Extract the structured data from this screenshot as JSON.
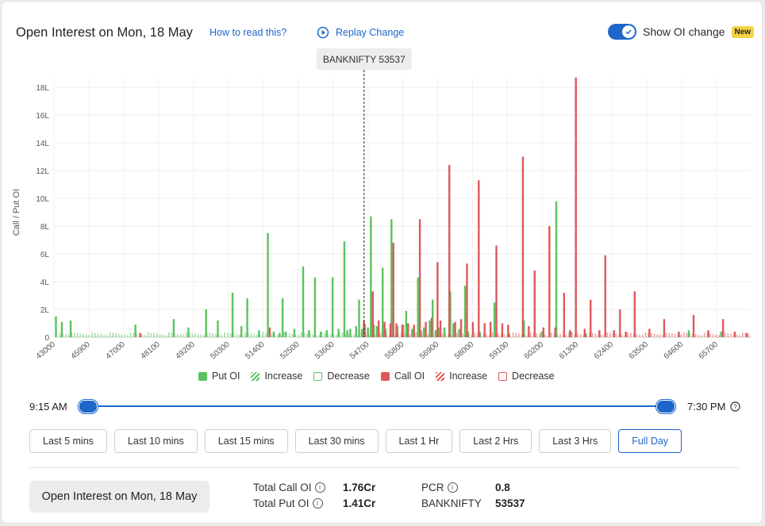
{
  "header": {
    "title": "Open Interest on Mon, 18 May",
    "how_to_read": "How to read this?",
    "replay": "Replay Change",
    "toggle_label": "Show OI change",
    "badge": "New"
  },
  "tooltip": "BANKNIFTY 53537",
  "legend": [
    {
      "label": "Put OI",
      "style": "solid",
      "color": "#5ac35f"
    },
    {
      "label": "Increase",
      "style": "hatch",
      "color": "#5ac35f"
    },
    {
      "label": "Decrease",
      "style": "outline",
      "color": "#5ac35f"
    },
    {
      "label": "Call OI",
      "style": "solid",
      "color": "#e0585a"
    },
    {
      "label": "Increase",
      "style": "hatch",
      "color": "#e0585a"
    },
    {
      "label": "Decrease",
      "style": "outline",
      "color": "#e0585a"
    }
  ],
  "slider": {
    "start": "9:15 AM",
    "end": "7:30 PM"
  },
  "time_buttons": [
    "Last 5 mins",
    "Last 10 mins",
    "Last 15 mins",
    "Last 30 mins",
    "Last 1 Hr",
    "Last 2 Hrs",
    "Last 3 Hrs",
    "Full Day"
  ],
  "active_button": "Full Day",
  "footer": {
    "box_label": "Open Interest on Mon, 18 May",
    "total_call_label": "Total Call OI",
    "total_call_value": "1.76Cr",
    "total_put_label": "Total Put OI",
    "total_put_value": "1.41Cr",
    "pcr_label": "PCR",
    "pcr_value": "0.8",
    "underlying_label": "BANKNIFTY",
    "underlying_value": "53537"
  },
  "colors": {
    "put": "#5ac35f",
    "call": "#e0585a",
    "accent": "#1e66c9"
  },
  "chart_data": {
    "type": "bar",
    "ylabel": "Call / Put OI",
    "ylim": [
      0,
      18
    ],
    "yticks": [
      "0",
      "2L",
      "4L",
      "6L",
      "8L",
      "10L",
      "12L",
      "14L",
      "16L",
      "18L"
    ],
    "xticks": [
      "43000",
      "45900",
      "47000",
      "48100",
      "49200",
      "50300",
      "51400",
      "52500",
      "53600",
      "54700",
      "55800",
      "56900",
      "58000",
      "59100",
      "60200",
      "61300",
      "62400",
      "63500",
      "64600",
      "65700"
    ],
    "xlim": [
      43000,
      66700
    ],
    "spot": 53537,
    "series": [
      {
        "name": "Put OI",
        "points": [
          [
            43100,
            1.5
          ],
          [
            43300,
            1.1
          ],
          [
            43600,
            1.2
          ],
          [
            45800,
            0.9
          ],
          [
            47100,
            1.3
          ],
          [
            47600,
            0.7
          ],
          [
            48200,
            2.0
          ],
          [
            48600,
            1.2
          ],
          [
            49100,
            3.2
          ],
          [
            49400,
            0.8
          ],
          [
            49600,
            2.8
          ],
          [
            50000,
            0.5
          ],
          [
            50300,
            7.5
          ],
          [
            50500,
            0.4
          ],
          [
            50700,
            0.3
          ],
          [
            50800,
            2.8
          ],
          [
            50900,
            0.4
          ],
          [
            51200,
            0.6
          ],
          [
            51500,
            5.1
          ],
          [
            51700,
            0.5
          ],
          [
            51900,
            4.3
          ],
          [
            52100,
            0.4
          ],
          [
            52300,
            0.5
          ],
          [
            52500,
            4.3
          ],
          [
            52700,
            0.6
          ],
          [
            52900,
            6.9
          ],
          [
            53000,
            0.5
          ],
          [
            53100,
            0.6
          ],
          [
            53300,
            0.8
          ],
          [
            53400,
            2.7
          ],
          [
            53500,
            0.6
          ],
          [
            53600,
            0.9
          ],
          [
            53700,
            0.7
          ],
          [
            53800,
            8.7
          ],
          [
            53900,
            0.9
          ],
          [
            54000,
            0.8
          ],
          [
            54200,
            5.0
          ],
          [
            54300,
            0.6
          ],
          [
            54500,
            8.5
          ],
          [
            54700,
            0.8
          ],
          [
            54900,
            0.9
          ],
          [
            55000,
            1.9
          ],
          [
            55200,
            0.6
          ],
          [
            55400,
            4.3
          ],
          [
            55500,
            0.5
          ],
          [
            55600,
            0.7
          ],
          [
            55800,
            1.2
          ],
          [
            55900,
            2.7
          ],
          [
            56000,
            0.5
          ],
          [
            56100,
            0.7
          ],
          [
            56300,
            0.7
          ],
          [
            56500,
            3.3
          ],
          [
            56600,
            1.0
          ],
          [
            56800,
            0.6
          ],
          [
            57000,
            3.7
          ],
          [
            57100,
            0.4
          ],
          [
            57500,
            0.4
          ],
          [
            58000,
            2.5
          ],
          [
            58500,
            0.3
          ],
          [
            59000,
            1.2
          ],
          [
            59600,
            0.4
          ],
          [
            60100,
            9.8
          ],
          [
            60600,
            0.4
          ],
          [
            61100,
            0.3
          ],
          [
            64600,
            0.5
          ],
          [
            65700,
            0.4
          ]
        ]
      },
      {
        "name": "Call OI",
        "points": [
          [
            45900,
            0.3
          ],
          [
            50300,
            0.7
          ],
          [
            53500,
            1.2
          ],
          [
            53800,
            3.3
          ],
          [
            54000,
            1.2
          ],
          [
            54200,
            1.1
          ],
          [
            54400,
            1.0
          ],
          [
            54500,
            6.8
          ],
          [
            54600,
            1.0
          ],
          [
            54800,
            0.9
          ],
          [
            55000,
            1.0
          ],
          [
            55200,
            0.9
          ],
          [
            55400,
            8.5
          ],
          [
            55600,
            1.1
          ],
          [
            55800,
            1.4
          ],
          [
            56000,
            5.4
          ],
          [
            56100,
            1.2
          ],
          [
            56400,
            12.4
          ],
          [
            56600,
            1.1
          ],
          [
            56800,
            1.3
          ],
          [
            57000,
            5.3
          ],
          [
            57200,
            1.1
          ],
          [
            57400,
            11.3
          ],
          [
            57600,
            1.0
          ],
          [
            57800,
            1.1
          ],
          [
            58000,
            6.6
          ],
          [
            58200,
            1.0
          ],
          [
            58400,
            0.9
          ],
          [
            58900,
            13.0
          ],
          [
            59100,
            0.8
          ],
          [
            59300,
            4.8
          ],
          [
            59600,
            0.7
          ],
          [
            59800,
            8.0
          ],
          [
            60000,
            0.7
          ],
          [
            60300,
            3.2
          ],
          [
            60500,
            0.5
          ],
          [
            60700,
            18.7
          ],
          [
            61000,
            0.6
          ],
          [
            61200,
            2.7
          ],
          [
            61500,
            0.5
          ],
          [
            61700,
            5.9
          ],
          [
            62000,
            0.5
          ],
          [
            62200,
            2.0
          ],
          [
            62400,
            0.4
          ],
          [
            62700,
            3.3
          ],
          [
            63200,
            0.6
          ],
          [
            63700,
            1.3
          ],
          [
            64200,
            0.4
          ],
          [
            64700,
            1.6
          ],
          [
            65200,
            0.5
          ],
          [
            65700,
            1.3
          ],
          [
            66100,
            0.4
          ],
          [
            66500,
            0.3
          ]
        ]
      }
    ]
  }
}
